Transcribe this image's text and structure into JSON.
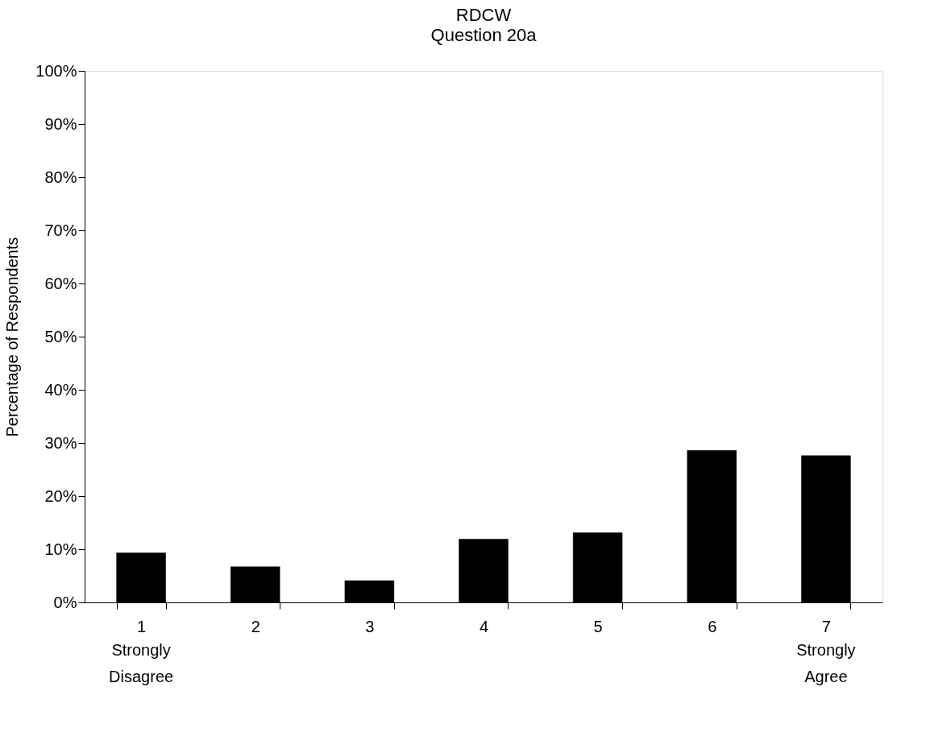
{
  "chart_data": {
    "type": "bar",
    "title": "RDCW",
    "subtitle": "Question 20a",
    "ylabel": "Percentage of Respondents",
    "categories": [
      "1",
      "2",
      "3",
      "4",
      "5",
      "6",
      "7"
    ],
    "values": [
      9.3,
      6.7,
      4.1,
      11.9,
      13.1,
      28.6,
      27.6
    ],
    "color": "#000000",
    "ylim": [
      0,
      100
    ],
    "yticks": [
      {
        "value": 0,
        "label": "0%"
      },
      {
        "value": 10,
        "label": "10%"
      },
      {
        "value": 20,
        "label": "20%"
      },
      {
        "value": 30,
        "label": "30%"
      },
      {
        "value": 40,
        "label": "40%"
      },
      {
        "value": 50,
        "label": "50%"
      },
      {
        "value": 60,
        "label": "60%"
      },
      {
        "value": 70,
        "label": "70%"
      },
      {
        "value": 80,
        "label": "80%"
      },
      {
        "value": 90,
        "label": "90%"
      },
      {
        "value": 100,
        "label": "100%"
      }
    ],
    "annotations": [
      "Strongly Disagree",
      "Strongly Agree"
    ],
    "grid": false
  }
}
